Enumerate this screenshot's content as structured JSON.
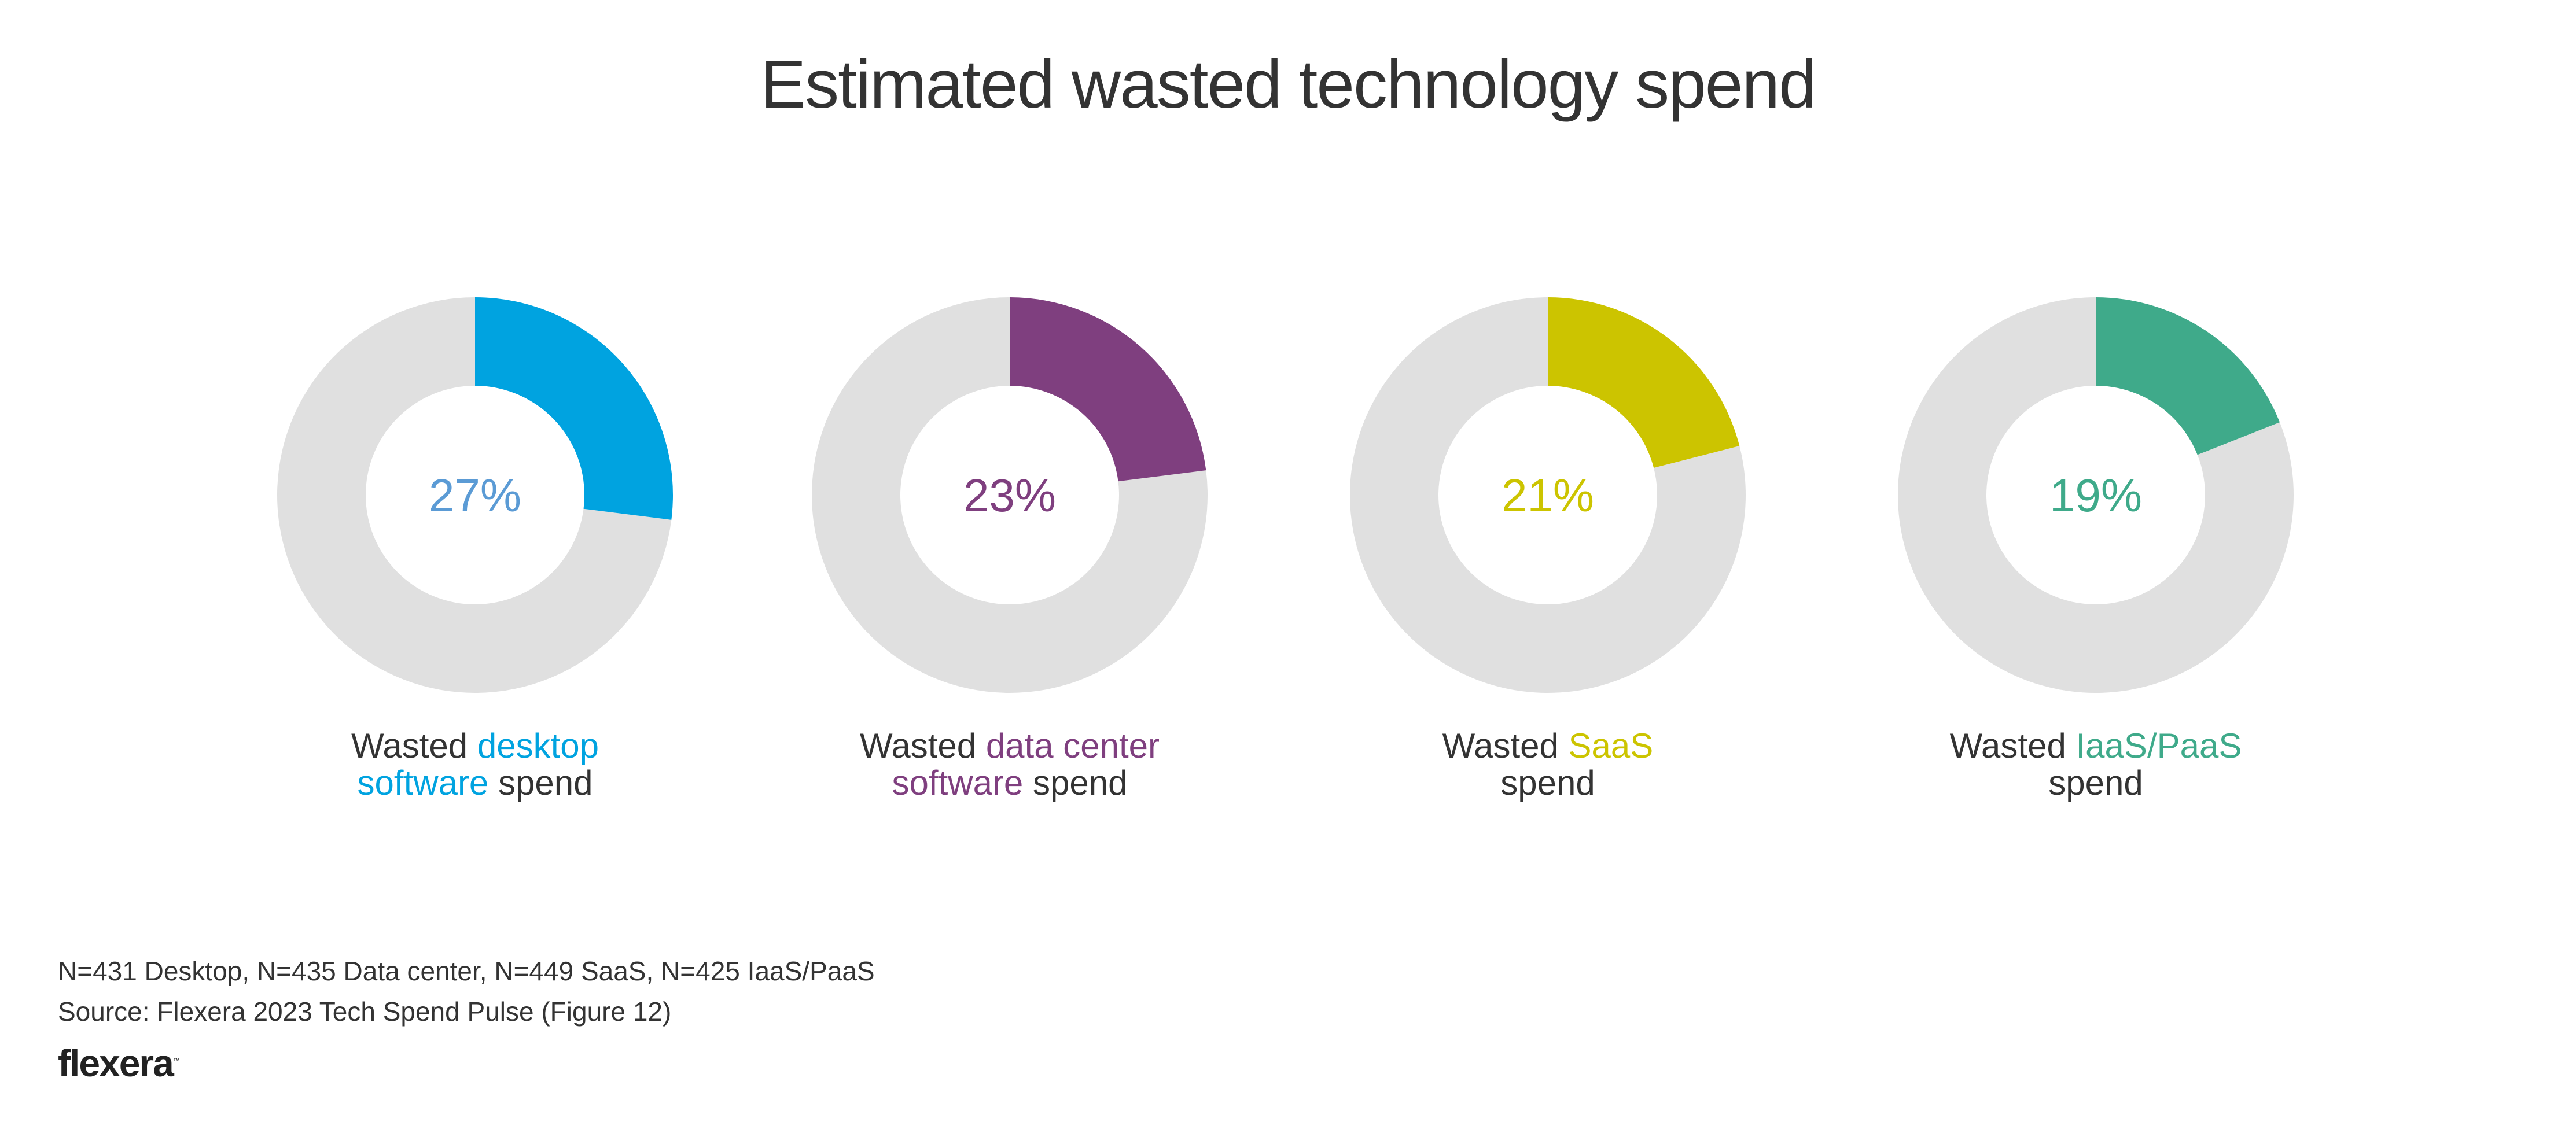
{
  "chart_data": {
    "type": "pie",
    "subtype": "donut",
    "title": "Estimated wasted technology spend",
    "remainder_color": "#E0E0E0",
    "series": [
      {
        "name": "Wasted desktop software spend",
        "value": 27,
        "value_label": "27%",
        "color": "#00A3E0",
        "value_text_color": "#5B9BD5",
        "label_parts": [
          {
            "text": "Wasted ",
            "highlight": false
          },
          {
            "text": "desktop",
            "highlight": true
          },
          {
            "text": "\n",
            "highlight": false
          },
          {
            "text": "software",
            "highlight": true
          },
          {
            "text": " spend",
            "highlight": false
          }
        ]
      },
      {
        "name": "Wasted data center software spend",
        "value": 23,
        "value_label": "23%",
        "color": "#7F3F7F",
        "value_text_color": "#7F3F7F",
        "label_parts": [
          {
            "text": "Wasted ",
            "highlight": false
          },
          {
            "text": "data center",
            "highlight": true
          },
          {
            "text": "\n",
            "highlight": false
          },
          {
            "text": "software",
            "highlight": true
          },
          {
            "text": " spend",
            "highlight": false
          }
        ]
      },
      {
        "name": "Wasted SaaS spend",
        "value": 21,
        "value_label": "21%",
        "color": "#CCC400",
        "value_text_color": "#CCC400",
        "label_parts": [
          {
            "text": "Wasted ",
            "highlight": false
          },
          {
            "text": "SaaS",
            "highlight": true
          },
          {
            "text": "\n",
            "highlight": false
          },
          {
            "text": "spend",
            "highlight": false
          }
        ]
      },
      {
        "name": "Wasted IaaS/PaaS spend",
        "value": 19,
        "value_label": "19%",
        "color": "#3FAA8A",
        "value_text_color": "#3FAA8A",
        "label_parts": [
          {
            "text": "Wasted ",
            "highlight": false
          },
          {
            "text": "IaaS/PaaS",
            "highlight": true
          },
          {
            "text": "\n",
            "highlight": false
          },
          {
            "text": "spend",
            "highlight": false
          }
        ]
      }
    ]
  },
  "footer": {
    "sample_sizes": "N=431 Desktop, N=435 Data center, N=449 SaaS, N=425 IaaS/PaaS",
    "source": "Source: Flexera 2023 Tech Spend Pulse (Figure 12)",
    "logo_text": "flexera",
    "logo_mark": "™"
  }
}
